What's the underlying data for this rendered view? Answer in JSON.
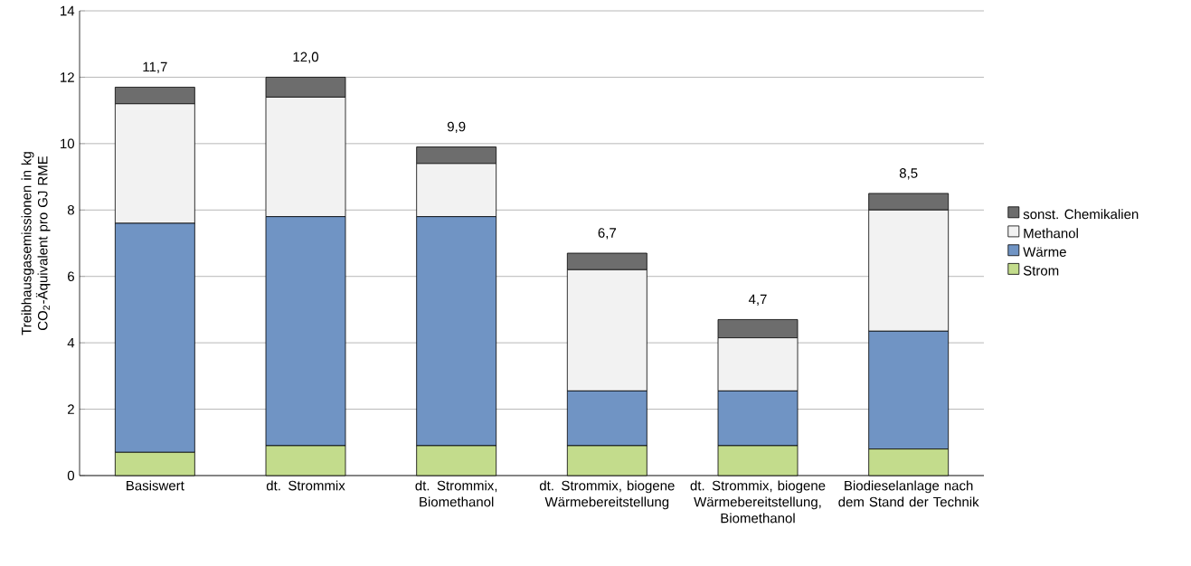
{
  "chart_data": {
    "type": "bar",
    "stacked": true,
    "ylabel": "Treibhausgasemissionen in kg CO$_{2}$-Äquivalent pro GJ RME",
    "categories": [
      "Basiswert",
      "dt. Strommix",
      "dt. Strommix, Biomethanol",
      "dt. Strommix, biogene Wärmebereitstellung",
      "dt. Strommix, biogene Wärmebereitstellung, Biomethanol",
      "Biodieselanlage nach dem Stand der Technik"
    ],
    "series": [
      {
        "name": "Strom",
        "color": "#c3dc8c",
        "values": [
          0.7,
          0.9,
          0.9,
          0.9,
          0.9,
          0.8
        ]
      },
      {
        "name": "Wärme",
        "color": "#7094c4",
        "values": [
          6.9,
          6.9,
          6.9,
          1.65,
          1.65,
          3.55
        ]
      },
      {
        "name": "Methanol",
        "color": "#f2f2f2",
        "values": [
          3.6,
          3.6,
          1.6,
          3.65,
          1.6,
          3.65
        ]
      },
      {
        "name": "sonst. Chemikalien",
        "color": "#6d6d6d",
        "values": [
          0.5,
          0.6,
          0.5,
          0.5,
          0.55,
          0.5
        ]
      }
    ],
    "totals": [
      "11,7",
      "12,0",
      "9,9",
      "6,7",
      "4,7",
      "8,5"
    ],
    "ylim": [
      0,
      14
    ],
    "yticks": [
      0,
      2,
      4,
      6,
      8,
      10,
      12,
      14
    ],
    "grid": "y",
    "legend": "right"
  }
}
